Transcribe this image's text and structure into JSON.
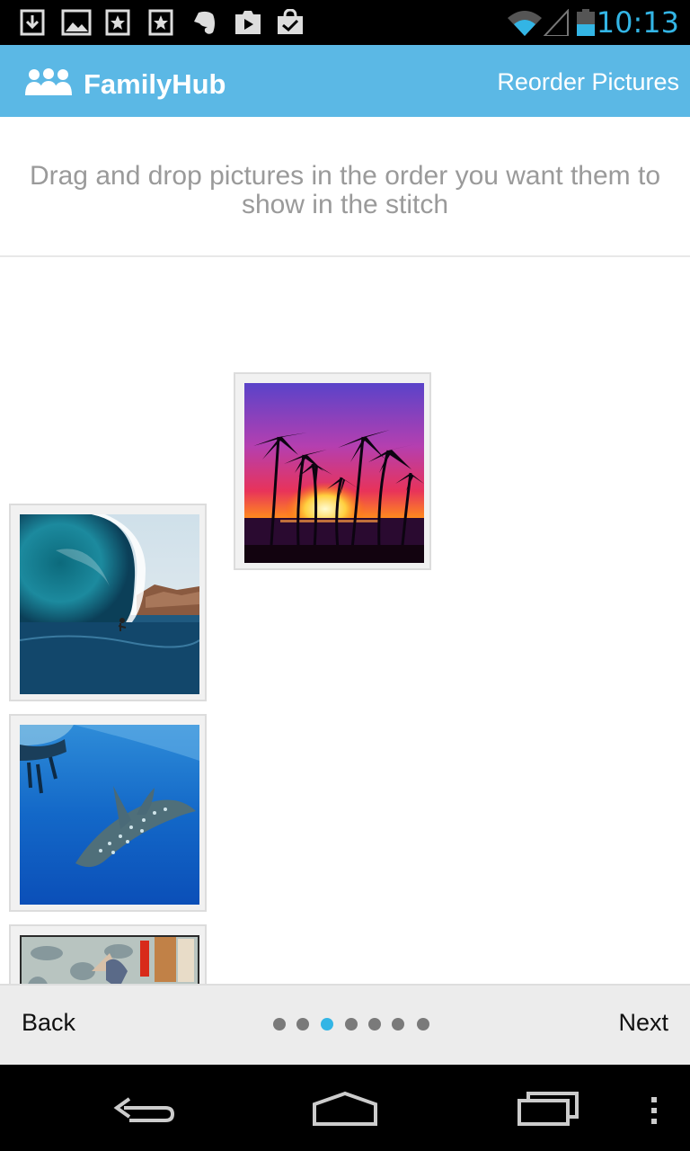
{
  "status_bar": {
    "time": "10:13",
    "icons": [
      "download-icon",
      "gallery-icon",
      "starred-icon",
      "starred-icon",
      "evernote-icon",
      "play-store-icon",
      "shopping-bag-icon",
      "wifi-icon",
      "signal-icon",
      "battery-icon"
    ]
  },
  "action_bar": {
    "app_name": "FamilyHub",
    "screen_title": "Reorder Pictures"
  },
  "instructions": "Drag and drop pictures in the order you want them to show in the stitch",
  "pictures": [
    {
      "subject": "palm trees at sunset"
    },
    {
      "subject": "surfer in wave tube"
    },
    {
      "subject": "whale shark underwater"
    },
    {
      "subject": "table with drinks"
    }
  ],
  "pager": {
    "back_label": "Back",
    "next_label": "Next",
    "pages": 7,
    "current_page": 3
  },
  "colors": {
    "accent": "#5bb8e5",
    "status_accent": "#33b5e5"
  }
}
